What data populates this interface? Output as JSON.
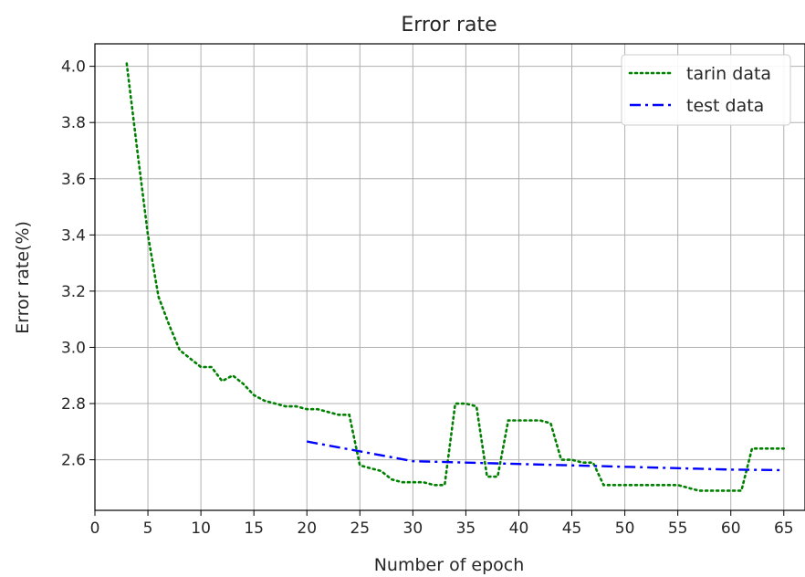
{
  "chart_data": {
    "type": "line",
    "title": "Error rate",
    "xlabel": "Number of epoch",
    "ylabel": "Error rate(%)",
    "xlim": [
      0,
      67
    ],
    "ylim": [
      2.42,
      4.08
    ],
    "xticks": [
      0,
      5,
      10,
      15,
      20,
      25,
      30,
      35,
      40,
      45,
      50,
      55,
      60,
      65
    ],
    "yticks": [
      2.6,
      2.8,
      3.0,
      3.2,
      3.4,
      3.6,
      3.8,
      4.0
    ],
    "grid": true,
    "legend_position": "top-right",
    "series": [
      {
        "name": "tarin data",
        "color": "#008000",
        "style": "dotted",
        "x": [
          3,
          4,
          5,
          6,
          7,
          8,
          9,
          10,
          11,
          12,
          13,
          14,
          15,
          16,
          17,
          18,
          19,
          20,
          21,
          22,
          23,
          24,
          25,
          26,
          27,
          28,
          29,
          30,
          31,
          32,
          33,
          34,
          35,
          36,
          37,
          38,
          39,
          40,
          41,
          42,
          43,
          44,
          45,
          46,
          47,
          48,
          49,
          50,
          51,
          52,
          53,
          54,
          55,
          56,
          57,
          58,
          59,
          60,
          61,
          62,
          63,
          64,
          65
        ],
        "y": [
          4.01,
          3.7,
          3.4,
          3.18,
          3.08,
          2.99,
          2.96,
          2.93,
          2.93,
          2.88,
          2.9,
          2.87,
          2.83,
          2.81,
          2.8,
          2.79,
          2.79,
          2.78,
          2.78,
          2.77,
          2.76,
          2.76,
          2.58,
          2.57,
          2.56,
          2.53,
          2.52,
          2.52,
          2.52,
          2.51,
          2.51,
          2.8,
          2.8,
          2.79,
          2.54,
          2.54,
          2.74,
          2.74,
          2.74,
          2.74,
          2.73,
          2.6,
          2.6,
          2.59,
          2.59,
          2.51,
          2.51,
          2.51,
          2.51,
          2.51,
          2.51,
          2.51,
          2.51,
          2.5,
          2.49,
          2.49,
          2.49,
          2.49,
          2.49,
          2.64,
          2.64,
          2.64,
          2.64
        ]
      },
      {
        "name": "test data",
        "color": "#0000ff",
        "style": "dashdot",
        "x": [
          20,
          25,
          30,
          35,
          40,
          45,
          50,
          55,
          60,
          65
        ],
        "y": [
          2.665,
          2.63,
          2.595,
          2.59,
          2.585,
          2.58,
          2.575,
          2.57,
          2.565,
          2.563
        ]
      }
    ]
  }
}
